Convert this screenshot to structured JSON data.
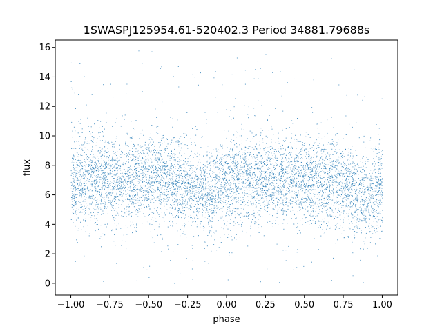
{
  "chart_data": {
    "type": "scatter",
    "title": "1SWASPJ125954.61-520402.3 Period 34881.79688s",
    "xlabel": "phase",
    "ylabel": "flux",
    "xlim": [
      -1.1,
      1.1
    ],
    "ylim": [
      -0.8,
      16.5
    ],
    "xticks": [
      -1.0,
      -0.75,
      -0.5,
      -0.25,
      0.0,
      0.25,
      0.5,
      0.75,
      1.0
    ],
    "xtick_labels": [
      "−1.00",
      "−0.75",
      "−0.50",
      "−0.25",
      "0.00",
      "0.25",
      "0.50",
      "0.75",
      "1.00"
    ],
    "yticks": [
      0,
      2,
      4,
      6,
      8,
      10,
      12,
      14,
      16
    ],
    "ytick_labels": [
      "0",
      "2",
      "4",
      "6",
      "8",
      "10",
      "12",
      "14",
      "16"
    ],
    "grid": false,
    "legend": "none",
    "color": "#1f77b4",
    "series": [
      {
        "phase_range": [
          -1.0,
          1.0
        ],
        "flux_trend": {
          "x": [
            -1.0,
            -0.75,
            -0.5,
            -0.25,
            -0.15,
            -0.1,
            0.0,
            0.25,
            0.5,
            0.75,
            0.85,
            0.9,
            1.0
          ],
          "y": [
            6.9,
            7.1,
            7.0,
            6.8,
            6.0,
            5.9,
            7.0,
            7.1,
            7.0,
            6.8,
            6.0,
            5.9,
            6.9
          ]
        },
        "flux_spread_1sigma": 1.5,
        "flux_min": 0.0,
        "flux_max": 15.8
      }
    ]
  }
}
